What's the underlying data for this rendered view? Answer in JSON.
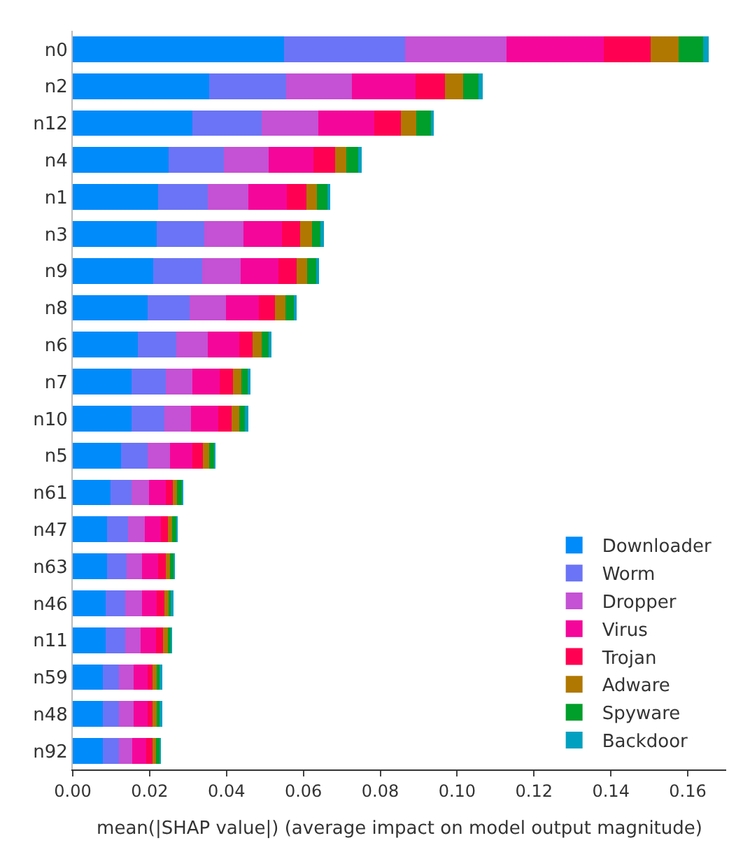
{
  "chart_data": {
    "type": "bar",
    "orientation": "horizontal",
    "stacked": true,
    "xlabel": "mean(|SHAP value|) (average impact on model output magnitude)",
    "categories": [
      "n0",
      "n2",
      "n12",
      "n4",
      "n1",
      "n3",
      "n9",
      "n8",
      "n6",
      "n7",
      "n10",
      "n5",
      "n61",
      "n47",
      "n63",
      "n46",
      "n11",
      "n59",
      "n48",
      "n92"
    ],
    "series": [
      {
        "name": "Downloader",
        "color": "#008bfb",
        "values": [
          0.0549,
          0.0354,
          0.0311,
          0.0249,
          0.0222,
          0.0218,
          0.021,
          0.0194,
          0.017,
          0.0152,
          0.0152,
          0.0125,
          0.0098,
          0.009,
          0.009,
          0.0086,
          0.0086,
          0.0078,
          0.0078,
          0.0078
        ]
      },
      {
        "name": "Worm",
        "color": "#6b74f6",
        "values": [
          0.0316,
          0.0202,
          0.018,
          0.0145,
          0.0129,
          0.0125,
          0.0127,
          0.011,
          0.0099,
          0.009,
          0.0086,
          0.007,
          0.0054,
          0.0054,
          0.0051,
          0.0051,
          0.0051,
          0.0043,
          0.0043,
          0.0043
        ]
      },
      {
        "name": "Dropper",
        "color": "#c551d4",
        "values": [
          0.0264,
          0.017,
          0.0148,
          0.0116,
          0.0105,
          0.0101,
          0.01,
          0.0094,
          0.0082,
          0.0069,
          0.007,
          0.0058,
          0.0047,
          0.0043,
          0.0039,
          0.0043,
          0.004,
          0.0037,
          0.0037,
          0.0034
        ]
      },
      {
        "name": "Virus",
        "color": "#f5069a",
        "values": [
          0.0253,
          0.0165,
          0.0145,
          0.0117,
          0.0101,
          0.01,
          0.0098,
          0.0086,
          0.0082,
          0.0071,
          0.007,
          0.0058,
          0.0043,
          0.0042,
          0.0042,
          0.0039,
          0.0039,
          0.0036,
          0.0036,
          0.0036
        ]
      },
      {
        "name": "Trojan",
        "color": "#ff0052",
        "values": [
          0.0122,
          0.0077,
          0.007,
          0.0055,
          0.0051,
          0.0048,
          0.0047,
          0.0042,
          0.0034,
          0.0034,
          0.0035,
          0.0028,
          0.0018,
          0.0019,
          0.002,
          0.0019,
          0.0019,
          0.0014,
          0.0014,
          0.0017
        ]
      },
      {
        "name": "Adware",
        "color": "#b07800",
        "values": [
          0.0072,
          0.0047,
          0.004,
          0.003,
          0.0028,
          0.003,
          0.0027,
          0.0028,
          0.0024,
          0.0022,
          0.002,
          0.0016,
          0.0012,
          0.0011,
          0.0011,
          0.0012,
          0.0012,
          0.0011,
          0.0011,
          0.0008
        ]
      },
      {
        "name": "Spyware",
        "color": "#009e2a",
        "values": [
          0.0064,
          0.004,
          0.004,
          0.0033,
          0.0029,
          0.0025,
          0.0028,
          0.0024,
          0.0022,
          0.0019,
          0.0018,
          0.0014,
          0.0013,
          0.0011,
          0.001,
          0.0008,
          0.0008,
          0.001,
          0.001,
          0.001
        ]
      },
      {
        "name": "Backdoor",
        "color": "#00a0c0",
        "values": [
          0.0014,
          0.0011,
          0.0006,
          0.0007,
          0.0004,
          0.0006,
          0.0004,
          0.0004,
          0.0002,
          0.0002,
          0.0005,
          0.0002,
          0.0002,
          0.0002,
          0.0002,
          0.0002,
          0.0002,
          0.0002,
          0.0004,
          0.0002
        ]
      }
    ],
    "xlim": [
      0,
      0.17
    ],
    "xticks": [
      {
        "value": 0,
        "label": "0.00"
      },
      {
        "value": 0.02,
        "label": "0.02"
      },
      {
        "value": 0.04,
        "label": "0.04"
      },
      {
        "value": 0.06,
        "label": "0.06"
      },
      {
        "value": 0.08,
        "label": "0.08"
      },
      {
        "value": 0.1,
        "label": "0.10"
      },
      {
        "value": 0.12,
        "label": "0.12"
      },
      {
        "value": 0.14,
        "label": "0.14"
      },
      {
        "value": 0.16,
        "label": "0.16"
      }
    ],
    "legend": "bottom right"
  }
}
